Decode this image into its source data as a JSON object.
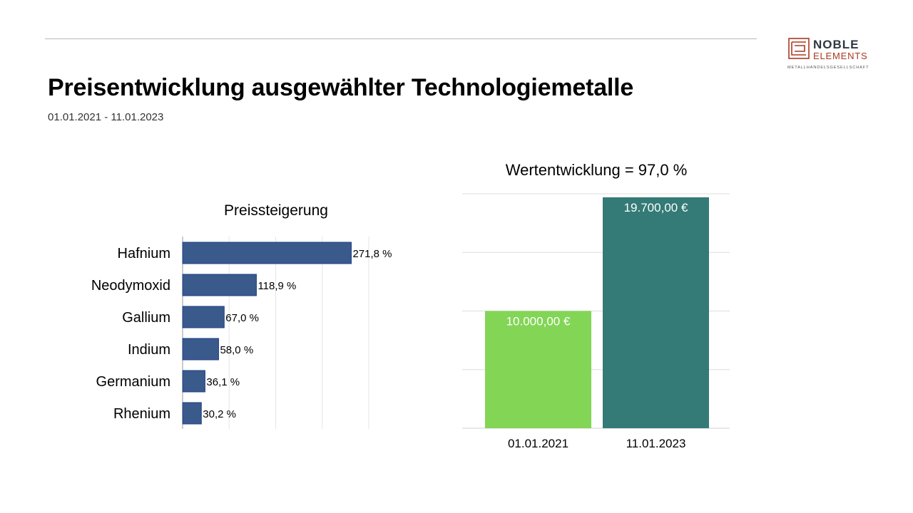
{
  "header": {
    "title": "Preisentwicklung ausgewählter Technologiemetalle",
    "subtitle": "01.01.2021 - 11.01.2023"
  },
  "logo": {
    "line1": "NOBLE",
    "line2": "ELEMENTS",
    "line3": "METALLHANDELSGESELLSCHAFT",
    "brand_color": "#a83a22",
    "text_color": "#2f3742"
  },
  "chart_data": [
    {
      "type": "bar",
      "orientation": "horizontal",
      "title": "Preissteigerung",
      "categories": [
        "Hafnium",
        "Neodymoxid",
        "Gallium",
        "Indium",
        "Germanium",
        "Rhenium"
      ],
      "values": [
        271.8,
        118.9,
        67.0,
        58.0,
        36.1,
        30.2
      ],
      "data_labels": [
        "271,8 %",
        "118,9 %",
        "67,0 %",
        "58,0 %",
        "36,1 %",
        "30,2 %"
      ],
      "xlim": [
        0,
        300
      ],
      "grid_step": 75,
      "grid": true,
      "color": "#3a5a8c"
    },
    {
      "type": "bar",
      "title": "Wertentwicklung = 97,0 %",
      "categories": [
        "01.01.2021",
        "11.01.2023"
      ],
      "values": [
        10000,
        19700
      ],
      "data_labels": [
        "10.000,00 €",
        "19.700,00 €"
      ],
      "ylim": [
        0,
        20000
      ],
      "grid_step": 5000,
      "grid": true,
      "colors": [
        "#82d555",
        "#347a76"
      ]
    }
  ]
}
